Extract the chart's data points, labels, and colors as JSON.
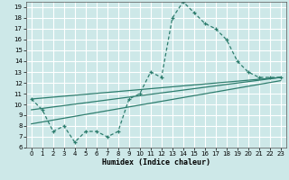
{
  "title": "",
  "xlabel": "Humidex (Indice chaleur)",
  "bg_color": "#cde8e8",
  "grid_color": "#ffffff",
  "line_color": "#2d7d6e",
  "xlim": [
    -0.5,
    23.5
  ],
  "ylim": [
    6,
    19.5
  ],
  "xticks": [
    0,
    1,
    2,
    3,
    4,
    5,
    6,
    7,
    8,
    9,
    10,
    11,
    12,
    13,
    14,
    15,
    16,
    17,
    18,
    19,
    20,
    21,
    22,
    23
  ],
  "yticks": [
    6,
    7,
    8,
    9,
    10,
    11,
    12,
    13,
    14,
    15,
    16,
    17,
    18,
    19
  ],
  "line1_x": [
    0,
    1,
    2,
    3,
    4,
    5,
    6,
    7,
    8,
    9,
    10,
    11,
    12,
    13,
    14,
    15,
    16,
    17,
    18,
    19,
    20,
    21,
    22,
    23
  ],
  "line1_y": [
    10.5,
    9.5,
    7.5,
    8.0,
    6.5,
    7.5,
    7.5,
    7.0,
    7.5,
    10.5,
    11.0,
    13.0,
    12.5,
    18.0,
    19.5,
    18.5,
    17.5,
    17.0,
    16.0,
    14.0,
    13.0,
    12.5,
    12.5,
    12.5
  ],
  "line2_x": [
    0,
    23
  ],
  "line2_y": [
    10.5,
    12.5
  ],
  "line3_x": [
    0,
    23
  ],
  "line3_y": [
    9.5,
    12.5
  ],
  "line4_x": [
    0,
    23
  ],
  "line4_y": [
    8.2,
    12.2
  ]
}
